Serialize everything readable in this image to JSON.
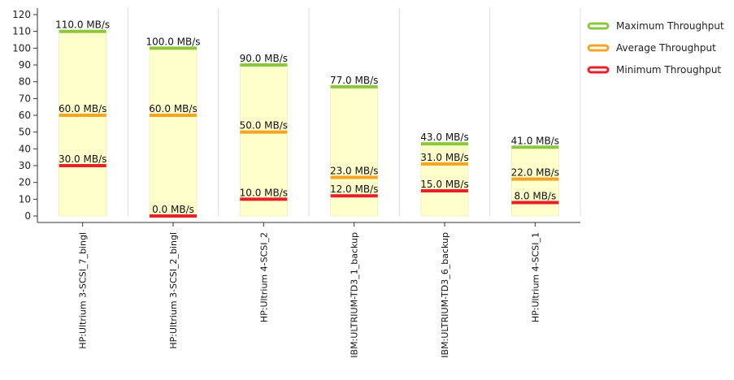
{
  "chart_data": {
    "type": "bar",
    "categories": [
      "HP:Ultrium 3-SCSI_7_bingl",
      "HP:Ultrium 3-SCSI_2_bingl",
      "HP:Ultrium 4-SCSI_2",
      "IBM:ULTRIUM-TD3_1_backup",
      "IBM:ULTRIUM-TD3_6_backup",
      "HP:Ultrium 4-SCSI_1"
    ],
    "series": [
      {
        "name": "Maximum Throughput",
        "color": "#8cc63f",
        "values": [
          110.0,
          100.0,
          90.0,
          77.0,
          43.0,
          41.0
        ],
        "labels": [
          "110.0 MB/s",
          "100.0 MB/s",
          "90.0 MB/s",
          "77.0 MB/s",
          "43.0 MB/s",
          "41.0 MB/s"
        ]
      },
      {
        "name": "Average Throughput",
        "color": "#f7a326",
        "values": [
          60.0,
          60.0,
          50.0,
          23.0,
          31.0,
          22.0
        ],
        "labels": [
          "60.0 MB/s",
          "60.0 MB/s",
          "50.0 MB/s",
          "23.0 MB/s",
          "31.0 MB/s",
          "22.0 MB/s"
        ]
      },
      {
        "name": "Minimum Throughput",
        "color": "#e8202a",
        "values": [
          30.0,
          0.0,
          10.0,
          12.0,
          15.0,
          8.0
        ],
        "labels": [
          "30.0 MB/s",
          "0.0 MB/s",
          "10.0 MB/s",
          "12.0 MB/s",
          "15.0 MB/s",
          "8.0 MB/s"
        ]
      }
    ],
    "yticks": [
      "0",
      "10",
      "20",
      "30",
      "40",
      "50",
      "60",
      "70",
      "80",
      "90",
      "100",
      "110",
      "120"
    ],
    "ylim": [
      0,
      120
    ],
    "bar_fill": "#ffffcc",
    "grid": "vertical",
    "legend_position": "top-right"
  }
}
